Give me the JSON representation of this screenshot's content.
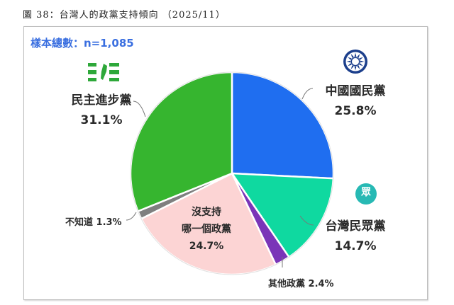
{
  "caption": "圖 38：台灣人的政黨支持傾向 （2025/11）",
  "sample_label": "樣本總數：n=1,085",
  "chart_data": {
    "type": "pie",
    "title": "台灣人的政黨支持傾向 (2025/11)",
    "sample_size": "n=1,085",
    "start_angle": "12 o'clock, clockwise",
    "legend": "none (labels placed around pie with leader lines)",
    "slices": [
      {
        "key": "kmt",
        "label": "中國國民黨",
        "value": 25.8,
        "pct_text": "25.8%",
        "color": "#1f6ef0",
        "logo": "kmt-sun-emblem"
      },
      {
        "key": "tpp",
        "label": "台灣民眾黨",
        "value": 14.7,
        "pct_text": "14.7%",
        "color": "#0fd9a0",
        "logo": "tpp-emblem"
      },
      {
        "key": "other",
        "label": "其他政黨",
        "value": 2.4,
        "pct_text": "2.4%",
        "color": "#7a35b8"
      },
      {
        "key": "none",
        "label": "沒支持哪一個政黨",
        "label_lines": [
          "沒支持",
          "哪一個政黨"
        ],
        "value": 24.7,
        "pct_text": "24.7%",
        "color": "#fcd4d4"
      },
      {
        "key": "dk",
        "label": "不知道",
        "value": 1.3,
        "pct_text": "1.3%",
        "color": "#7f7f7f"
      },
      {
        "key": "dpp",
        "label": "民主進步黨",
        "value": 31.1,
        "pct_text": "31.1%",
        "color": "#36b52f",
        "logo": "dpp-taiwan-emblem"
      }
    ]
  },
  "labels": {
    "kmt": {
      "name": "中國國民黨",
      "pct": "25.8%"
    },
    "tpp": {
      "name": "台灣民眾黨",
      "pct": "14.7%",
      "logo_char": "眾"
    },
    "dpp": {
      "name": "民主進步黨",
      "pct": "31.1%"
    },
    "other": {
      "text": "其他政黨 2.4%"
    },
    "dk": {
      "text": "不知道 1.3%"
    },
    "none": {
      "line1": "沒支持",
      "line2": "哪一個政黨",
      "pct": "24.7%"
    }
  }
}
